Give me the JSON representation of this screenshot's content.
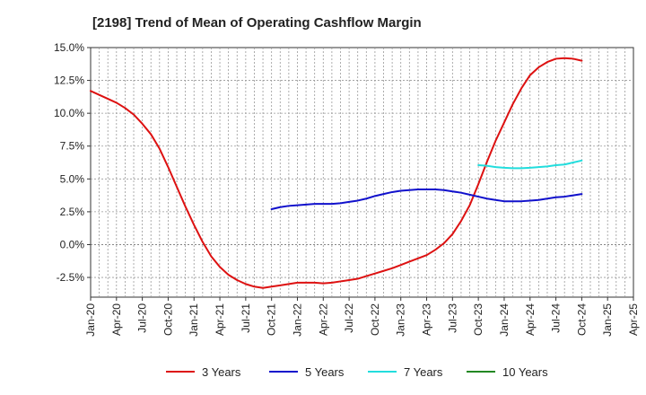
{
  "chart_data": {
    "type": "line",
    "title": "[2198]  Trend of Mean of Operating Cashflow Margin",
    "xlabel": "",
    "ylabel": "",
    "x_range": [
      "2020-01",
      "2025-04"
    ],
    "ylim": [
      -4.0,
      15.0
    ],
    "y_ticks": [
      -2.5,
      0.0,
      2.5,
      5.0,
      7.5,
      10.0,
      12.5,
      15.0
    ],
    "y_tick_labels": [
      "-2.5%",
      "0.0%",
      "2.5%",
      "5.0%",
      "7.5%",
      "10.0%",
      "12.5%",
      "15.0%"
    ],
    "x_ticks": [
      "2020-01",
      "2020-04",
      "2020-07",
      "2020-10",
      "2021-01",
      "2021-04",
      "2021-07",
      "2021-10",
      "2022-01",
      "2022-04",
      "2022-07",
      "2022-10",
      "2023-01",
      "2023-04",
      "2023-07",
      "2023-10",
      "2024-01",
      "2024-04",
      "2024-07",
      "2024-10",
      "2025-01",
      "2025-04"
    ],
    "x_tick_labels": [
      "Jan-20",
      "Apr-20",
      "Jul-20",
      "Oct-20",
      "Jan-21",
      "Apr-21",
      "Jul-21",
      "Oct-21",
      "Jan-22",
      "Apr-22",
      "Jul-22",
      "Oct-22",
      "Jan-23",
      "Apr-23",
      "Jul-23",
      "Oct-23",
      "Jan-24",
      "Apr-24",
      "Jul-24",
      "Oct-24",
      "Jan-25",
      "Apr-25"
    ],
    "grid": true,
    "legend": "bottom",
    "series": [
      {
        "name": "3 Years",
        "color": "#dd1111",
        "points": [
          [
            "2020-01",
            11.7
          ],
          [
            "2020-02",
            11.4
          ],
          [
            "2020-03",
            11.1
          ],
          [
            "2020-04",
            10.8
          ],
          [
            "2020-05",
            10.4
          ],
          [
            "2020-06",
            9.9
          ],
          [
            "2020-07",
            9.2
          ],
          [
            "2020-08",
            8.4
          ],
          [
            "2020-09",
            7.3
          ],
          [
            "2020-10",
            5.9
          ],
          [
            "2020-11",
            4.4
          ],
          [
            "2020-12",
            2.9
          ],
          [
            "2021-01",
            1.5
          ],
          [
            "2021-02",
            0.2
          ],
          [
            "2021-03",
            -0.9
          ],
          [
            "2021-04",
            -1.7
          ],
          [
            "2021-05",
            -2.3
          ],
          [
            "2021-06",
            -2.7
          ],
          [
            "2021-07",
            -3.0
          ],
          [
            "2021-08",
            -3.2
          ],
          [
            "2021-09",
            -3.3
          ],
          [
            "2021-10",
            -3.2
          ],
          [
            "2021-11",
            -3.1
          ],
          [
            "2021-12",
            -3.0
          ],
          [
            "2022-01",
            -2.9
          ],
          [
            "2022-02",
            -2.9
          ],
          [
            "2022-03",
            -2.9
          ],
          [
            "2022-04",
            -2.95
          ],
          [
            "2022-05",
            -2.9
          ],
          [
            "2022-06",
            -2.8
          ],
          [
            "2022-07",
            -2.7
          ],
          [
            "2022-08",
            -2.6
          ],
          [
            "2022-09",
            -2.4
          ],
          [
            "2022-10",
            -2.2
          ],
          [
            "2022-11",
            -2.0
          ],
          [
            "2022-12",
            -1.8
          ],
          [
            "2023-01",
            -1.55
          ],
          [
            "2023-02",
            -1.3
          ],
          [
            "2023-03",
            -1.05
          ],
          [
            "2023-04",
            -0.8
          ],
          [
            "2023-05",
            -0.4
          ],
          [
            "2023-06",
            0.1
          ],
          [
            "2023-07",
            0.8
          ],
          [
            "2023-08",
            1.8
          ],
          [
            "2023-09",
            3.0
          ],
          [
            "2023-10",
            4.6
          ],
          [
            "2023-11",
            6.3
          ],
          [
            "2023-12",
            7.9
          ],
          [
            "2024-01",
            9.3
          ],
          [
            "2024-02",
            10.7
          ],
          [
            "2024-03",
            11.9
          ],
          [
            "2024-04",
            12.9
          ],
          [
            "2024-05",
            13.5
          ],
          [
            "2024-06",
            13.9
          ],
          [
            "2024-07",
            14.15
          ],
          [
            "2024-08",
            14.2
          ],
          [
            "2024-09",
            14.15
          ],
          [
            "2024-10",
            14.0
          ]
        ]
      },
      {
        "name": "5 Years",
        "color": "#1111cc",
        "points": [
          [
            "2021-10",
            2.7
          ],
          [
            "2021-11",
            2.85
          ],
          [
            "2021-12",
            2.95
          ],
          [
            "2022-01",
            3.0
          ],
          [
            "2022-02",
            3.05
          ],
          [
            "2022-03",
            3.1
          ],
          [
            "2022-04",
            3.1
          ],
          [
            "2022-05",
            3.1
          ],
          [
            "2022-06",
            3.15
          ],
          [
            "2022-07",
            3.25
          ],
          [
            "2022-08",
            3.35
          ],
          [
            "2022-09",
            3.5
          ],
          [
            "2022-10",
            3.7
          ],
          [
            "2022-11",
            3.85
          ],
          [
            "2022-12",
            4.0
          ],
          [
            "2023-01",
            4.1
          ],
          [
            "2023-02",
            4.15
          ],
          [
            "2023-03",
            4.2
          ],
          [
            "2023-04",
            4.2
          ],
          [
            "2023-05",
            4.2
          ],
          [
            "2023-06",
            4.15
          ],
          [
            "2023-07",
            4.05
          ],
          [
            "2023-08",
            3.95
          ],
          [
            "2023-09",
            3.8
          ],
          [
            "2023-10",
            3.65
          ],
          [
            "2023-11",
            3.5
          ],
          [
            "2023-12",
            3.4
          ],
          [
            "2024-01",
            3.3
          ],
          [
            "2024-02",
            3.3
          ],
          [
            "2024-03",
            3.3
          ],
          [
            "2024-04",
            3.35
          ],
          [
            "2024-05",
            3.4
          ],
          [
            "2024-06",
            3.5
          ],
          [
            "2024-07",
            3.6
          ],
          [
            "2024-08",
            3.65
          ],
          [
            "2024-09",
            3.75
          ],
          [
            "2024-10",
            3.85
          ]
        ]
      },
      {
        "name": "7 Years",
        "color": "#22dddd",
        "points": [
          [
            "2023-10",
            6.05
          ],
          [
            "2023-11",
            6.0
          ],
          [
            "2023-12",
            5.9
          ],
          [
            "2024-01",
            5.85
          ],
          [
            "2024-02",
            5.82
          ],
          [
            "2024-03",
            5.82
          ],
          [
            "2024-04",
            5.85
          ],
          [
            "2024-05",
            5.9
          ],
          [
            "2024-06",
            5.95
          ],
          [
            "2024-07",
            6.05
          ],
          [
            "2024-08",
            6.1
          ],
          [
            "2024-09",
            6.25
          ],
          [
            "2024-10",
            6.4
          ]
        ]
      },
      {
        "name": "10 Years",
        "color": "#228822",
        "points": []
      }
    ]
  }
}
